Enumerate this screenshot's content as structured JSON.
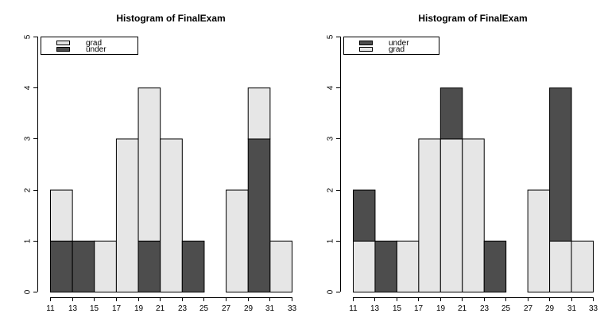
{
  "colors": {
    "dark": "#4d4d4d",
    "light": "#e6e6e6",
    "stroke": "#000000"
  },
  "chart_data": [
    {
      "type": "bar",
      "stacked": true,
      "title": "Histogram of FinalExam",
      "xlabel": "",
      "ylabel": "",
      "bin_edges": [
        11,
        13,
        15,
        17,
        19,
        21,
        23,
        25,
        27,
        29,
        31,
        33
      ],
      "x_ticks": [
        11,
        13,
        15,
        17,
        19,
        21,
        23,
        25,
        27,
        29,
        31,
        33
      ],
      "x_tick_labels": [
        "11",
        "13",
        "15",
        "17",
        "19",
        "21",
        "23",
        "25",
        "27",
        "29",
        "31",
        "33"
      ],
      "y_ticks": [
        0,
        1,
        2,
        3,
        4,
        5
      ],
      "y_tick_labels": [
        "0",
        "1",
        "2",
        "3",
        "4",
        "5"
      ],
      "ylim": [
        0,
        5
      ],
      "grid": false,
      "legend_position": "top-left",
      "series": [
        {
          "name": "under",
          "color": "dark",
          "values": [
            1,
            1,
            0,
            0,
            1,
            0,
            1,
            0,
            0,
            3,
            0
          ]
        },
        {
          "name": "grad",
          "color": "light",
          "values": [
            1,
            0,
            1,
            3,
            3,
            3,
            0,
            0,
            2,
            1,
            1
          ]
        }
      ],
      "legend": [
        {
          "label": "grad",
          "color": "light"
        },
        {
          "label": "under",
          "color": "dark"
        }
      ]
    },
    {
      "type": "bar",
      "stacked": true,
      "title": "Histogram of FinalExam",
      "xlabel": "",
      "ylabel": "",
      "bin_edges": [
        11,
        13,
        15,
        17,
        19,
        21,
        23,
        25,
        27,
        29,
        31,
        33
      ],
      "x_ticks": [
        11,
        13,
        15,
        17,
        19,
        21,
        23,
        25,
        27,
        29,
        31,
        33
      ],
      "x_tick_labels": [
        "11",
        "13",
        "15",
        "17",
        "19",
        "21",
        "23",
        "25",
        "27",
        "29",
        "31",
        "33"
      ],
      "y_ticks": [
        0,
        1,
        2,
        3,
        4,
        5
      ],
      "y_tick_labels": [
        "0",
        "1",
        "2",
        "3",
        "4",
        "5"
      ],
      "ylim": [
        0,
        5
      ],
      "grid": false,
      "legend_position": "top-left",
      "series": [
        {
          "name": "grad",
          "color": "light",
          "values": [
            1,
            0,
            1,
            3,
            3,
            3,
            0,
            0,
            2,
            1,
            1
          ]
        },
        {
          "name": "under",
          "color": "dark",
          "values": [
            1,
            1,
            0,
            0,
            1,
            0,
            1,
            0,
            0,
            3,
            0
          ]
        }
      ],
      "legend": [
        {
          "label": "under",
          "color": "dark"
        },
        {
          "label": "grad",
          "color": "light"
        }
      ]
    }
  ]
}
